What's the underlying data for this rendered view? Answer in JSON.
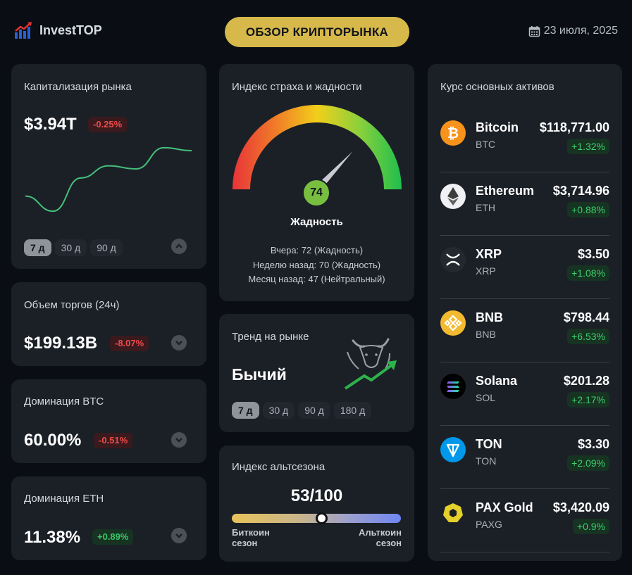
{
  "header": {
    "brand": "InvestTOP",
    "title": "ОБЗОР КРИПТОРЫНКА",
    "date": "23 июля, 2025"
  },
  "market_cap": {
    "title": "Капитализация рынка",
    "value": "$3.94T",
    "change": "-0.25%",
    "periods": [
      "7 д",
      "30 д",
      "90 д"
    ],
    "active_period": "7 д"
  },
  "volume": {
    "title": "Объем торгов (24ч)",
    "value": "$199.13B",
    "change": "-8.07%"
  },
  "btc_dominance": {
    "title": "Доминация BTC",
    "value": "60.00%",
    "change": "-0.51%"
  },
  "eth_dominance": {
    "title": "Доминация ETH",
    "value": "11.38%",
    "change": "+0.89%"
  },
  "fear_greed": {
    "title": "Индекс страха и жадности",
    "value": 74,
    "value_label": "74",
    "label": "Жадность",
    "yesterday": "Вчера: 72 (Жадность)",
    "week_ago": "Неделю назад: 70 (Жадность)",
    "month_ago": "Месяц назад: 47 (Нейтральный)"
  },
  "trend": {
    "title": "Тренд на рынке",
    "value": "Бычий",
    "periods": [
      "7 д",
      "30 д",
      "90 д",
      "180 д"
    ],
    "active_period": "7 д"
  },
  "altseason": {
    "title": "Индекс альтсезона",
    "value_label": "53/100",
    "value": 53,
    "left_label_1": "Биткоин",
    "left_label_2": "сезон",
    "right_label_1": "Альткоин",
    "right_label_2": "сезон"
  },
  "assets": {
    "title": "Курс основных активов",
    "items": [
      {
        "name": "Bitcoin",
        "ticker": "BTC",
        "price": "$118,771.00",
        "change": "+1.32%",
        "icon": "bitcoin-icon",
        "color": "#f7931a"
      },
      {
        "name": "Ethereum",
        "ticker": "ETH",
        "price": "$3,714.96",
        "change": "+0.88%",
        "icon": "ethereum-icon",
        "color": "#eef0f3"
      },
      {
        "name": "XRP",
        "ticker": "XRP",
        "price": "$3.50",
        "change": "+1.08%",
        "icon": "xrp-icon",
        "color": "#23292f"
      },
      {
        "name": "BNB",
        "ticker": "BNB",
        "price": "$798.44",
        "change": "+6.53%",
        "icon": "bnb-icon",
        "color": "#f3ba2f"
      },
      {
        "name": "Solana",
        "ticker": "SOL",
        "price": "$201.28",
        "change": "+2.17%",
        "icon": "solana-icon",
        "color": "#000000"
      },
      {
        "name": "TON",
        "ticker": "TON",
        "price": "$3.30",
        "change": "+2.09%",
        "icon": "ton-icon",
        "color": "#0098ea"
      },
      {
        "name": "PAX Gold",
        "ticker": "PAXG",
        "price": "$3,420.09",
        "change": "+0.9%",
        "icon": "pax-gold-icon",
        "color": "#e4d22b"
      }
    ]
  },
  "colors": {
    "accent": "#d6b94a",
    "positive": "#38c768",
    "negative": "#ee4b4b",
    "card": "#1b2027",
    "background": "#0a0e14"
  },
  "chart_data": {
    "type": "line",
    "values": [
      3.78,
      3.73,
      3.84,
      3.88,
      3.87,
      3.94,
      3.93
    ],
    "ylim": [
      3.7,
      3.97
    ]
  }
}
